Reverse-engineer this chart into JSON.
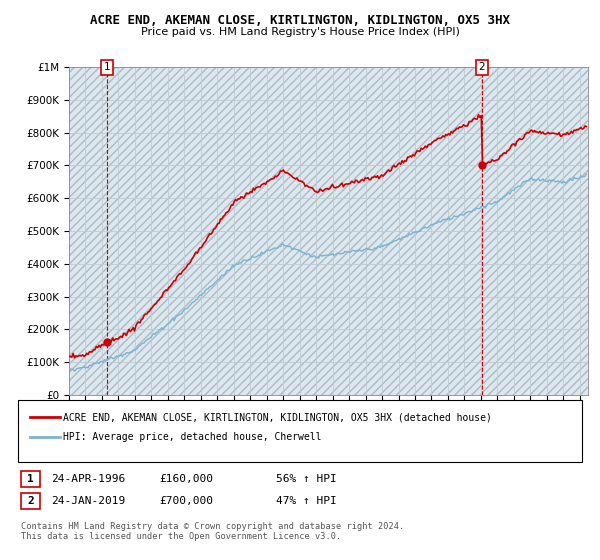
{
  "title": "ACRE END, AKEMAN CLOSE, KIRTLINGTON, KIDLINGTON, OX5 3HX",
  "subtitle": "Price paid vs. HM Land Registry's House Price Index (HPI)",
  "legend_line1": "ACRE END, AKEMAN CLOSE, KIRTLINGTON, KIDLINGTON, OX5 3HX (detached house)",
  "legend_line2": "HPI: Average price, detached house, Cherwell",
  "note1_date": "24-APR-1996",
  "note1_price": "£160,000",
  "note1_hpi": "56% ↑ HPI",
  "note2_date": "24-JAN-2019",
  "note2_price": "£700,000",
  "note2_hpi": "47% ↑ HPI",
  "footer": "Contains HM Land Registry data © Crown copyright and database right 2024.\nThis data is licensed under the Open Government Licence v3.0.",
  "sale1_year": 1996.31,
  "sale1_price": 160000,
  "sale2_year": 2019.07,
  "sale2_price": 700000,
  "hpi_color": "#7ab3d4",
  "price_color": "#cc0000",
  "marker_box_color": "#cc0000",
  "bg_color": "#dce8f0",
  "hatch_color": "#c8c8c8",
  "ylim_max": 1000000,
  "ylim_min": 0,
  "xlim_min": 1994,
  "xlim_max": 2025.5,
  "grid_color": "#c0ccd4"
}
